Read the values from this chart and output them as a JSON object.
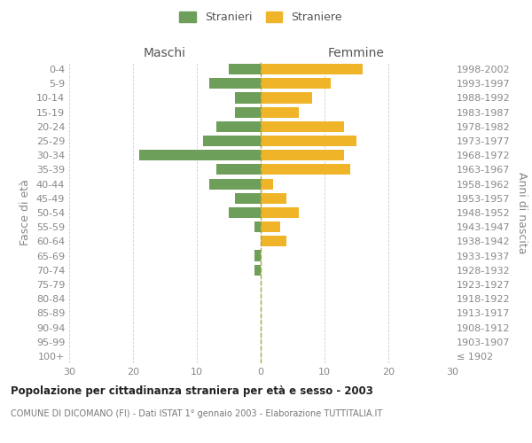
{
  "age_groups": [
    "100+",
    "95-99",
    "90-94",
    "85-89",
    "80-84",
    "75-79",
    "70-74",
    "65-69",
    "60-64",
    "55-59",
    "50-54",
    "45-49",
    "40-44",
    "35-39",
    "30-34",
    "25-29",
    "20-24",
    "15-19",
    "10-14",
    "5-9",
    "0-4"
  ],
  "birth_years": [
    "≤ 1902",
    "1903-1907",
    "1908-1912",
    "1913-1917",
    "1918-1922",
    "1923-1927",
    "1928-1932",
    "1933-1937",
    "1938-1942",
    "1943-1947",
    "1948-1952",
    "1953-1957",
    "1958-1962",
    "1963-1967",
    "1968-1972",
    "1973-1977",
    "1978-1982",
    "1983-1987",
    "1988-1992",
    "1993-1997",
    "1998-2002"
  ],
  "maschi": [
    0,
    0,
    0,
    0,
    0,
    0,
    1,
    1,
    0,
    1,
    5,
    4,
    8,
    7,
    19,
    9,
    7,
    4,
    4,
    8,
    5
  ],
  "femmine": [
    0,
    0,
    0,
    0,
    0,
    0,
    0,
    0,
    4,
    3,
    6,
    4,
    2,
    14,
    13,
    15,
    13,
    6,
    8,
    11,
    16
  ],
  "maschi_color": "#6d9e5a",
  "femmine_color": "#f0b429",
  "xlim": [
    -30,
    30
  ],
  "xticks": [
    -30,
    -20,
    -10,
    0,
    10,
    20,
    30
  ],
  "xticklabels": [
    "30",
    "20",
    "10",
    "0",
    "10",
    "20",
    "30"
  ],
  "title": "Popolazione per cittadinanza straniera per età e sesso - 2003",
  "subtitle": "COMUNE DI DICOMANO (FI) - Dati ISTAT 1° gennaio 2003 - Elaborazione TUTTITALIA.IT",
  "ylabel_left": "Fasce di età",
  "ylabel_right": "Anni di nascita",
  "maschi_label": "Stranieri",
  "femmine_label": "Straniere",
  "maschi_header": "Maschi",
  "femmine_header": "Femmine",
  "bg_color": "#ffffff",
  "grid_color": "#cccccc",
  "bar_height": 0.75
}
